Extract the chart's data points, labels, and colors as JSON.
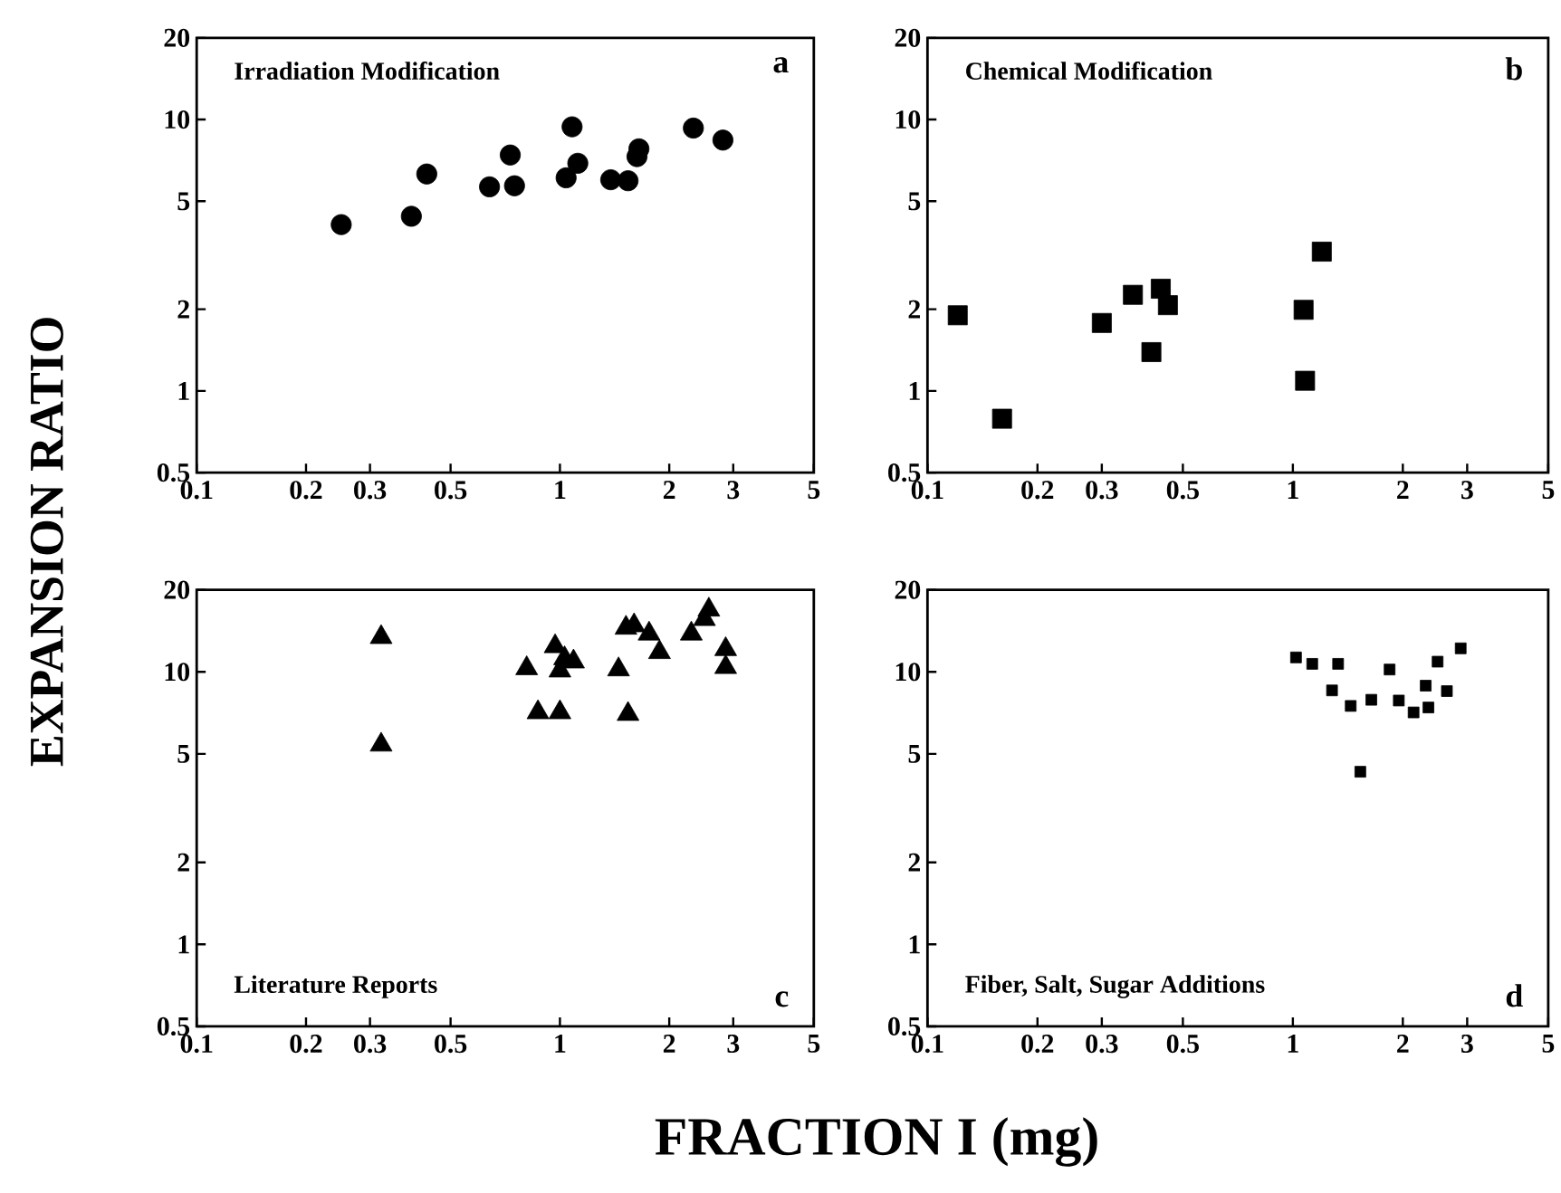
{
  "chart_data": [
    {
      "type": "scatter",
      "title": "Irradiation Modification",
      "annotations": [
        "a"
      ],
      "ylabel": "EXPANSION RATIO",
      "log": "xy",
      "marker": "circle",
      "color": "#000000",
      "x": [
        0.25,
        0.39,
        0.43,
        0.64,
        0.73,
        0.75,
        1.04,
        1.12,
        1.08,
        1.38,
        1.54,
        1.63,
        1.65,
        2.33,
        2.81
      ],
      "values": [
        4.1,
        4.4,
        6.3,
        5.65,
        7.4,
        5.7,
        6.1,
        6.9,
        9.4,
        6.0,
        5.95,
        7.3,
        7.8,
        9.3,
        8.4
      ],
      "xlim": [
        0.1,
        5
      ],
      "ylim": [
        0.5,
        20
      ],
      "xticks": [
        0.1,
        0.2,
        0.3,
        0.5,
        1,
        2,
        3,
        5
      ],
      "yticks": [
        0.5,
        1,
        2,
        5,
        10,
        20
      ]
    },
    {
      "type": "scatter",
      "title": "Chemical Modification",
      "annotations": [
        "b"
      ],
      "log": "xy",
      "marker": "square",
      "color": "#000000",
      "x": [
        0.121,
        0.16,
        0.3,
        0.365,
        0.41,
        0.435,
        0.455,
        1.07,
        1.08,
        1.2
      ],
      "values": [
        1.9,
        0.79,
        1.78,
        2.26,
        1.39,
        2.38,
        2.07,
        1.99,
        1.09,
        3.26
      ],
      "xlim": [
        0.1,
        5
      ],
      "ylim": [
        0.5,
        20
      ],
      "xticks": [
        0.1,
        0.2,
        0.3,
        0.5,
        1,
        2,
        3,
        5
      ],
      "yticks": [
        0.5,
        1,
        2,
        5,
        10,
        20
      ]
    },
    {
      "type": "scatter",
      "title": "Literature Reports",
      "annotations": [
        "c"
      ],
      "xlabel": "FRACTION  I (mg)",
      "log": "xy",
      "marker": "triangle",
      "color": "#000000",
      "x": [
        0.322,
        0.322,
        0.81,
        0.87,
        1.0,
        0.97,
        1.0,
        1.03,
        1.09,
        1.45,
        1.54,
        1.52,
        1.6,
        1.76,
        1.88,
        2.3,
        2.5,
        2.57,
        2.86,
        2.86
      ],
      "values": [
        13.4,
        5.4,
        10.3,
        7.1,
        7.1,
        12.4,
        10.1,
        11.2,
        10.9,
        10.2,
        7.0,
        14.5,
        14.8,
        13.8,
        11.8,
        13.8,
        15.6,
        16.9,
        12.1,
        10.4
      ],
      "xlim": [
        0.1,
        5
      ],
      "ylim": [
        0.5,
        20
      ],
      "xticks": [
        0.1,
        0.2,
        0.3,
        0.5,
        1,
        2,
        3,
        5
      ],
      "yticks": [
        0.5,
        1,
        2,
        5,
        10,
        20
      ]
    },
    {
      "type": "scatter",
      "title": "Fiber, Salt, Sugar Additions",
      "annotations": [
        "d"
      ],
      "log": "xy",
      "marker": "square",
      "color": "#000000",
      "x": [
        1.02,
        1.13,
        1.33,
        1.28,
        1.44,
        1.64,
        1.53,
        1.84,
        1.95,
        2.14,
        2.35,
        2.31,
        2.49,
        2.64,
        2.88
      ],
      "values": [
        11.3,
        10.7,
        10.7,
        8.55,
        7.5,
        7.9,
        4.3,
        10.2,
        7.85,
        7.1,
        7.4,
        8.9,
        10.9,
        8.5,
        12.2
      ],
      "xlim": [
        0.1,
        5
      ],
      "ylim": [
        0.5,
        20
      ],
      "xticks": [
        0.1,
        0.2,
        0.3,
        0.5,
        1,
        2,
        3,
        5
      ],
      "yticks": [
        0.5,
        1,
        2,
        5,
        10,
        20
      ]
    }
  ]
}
